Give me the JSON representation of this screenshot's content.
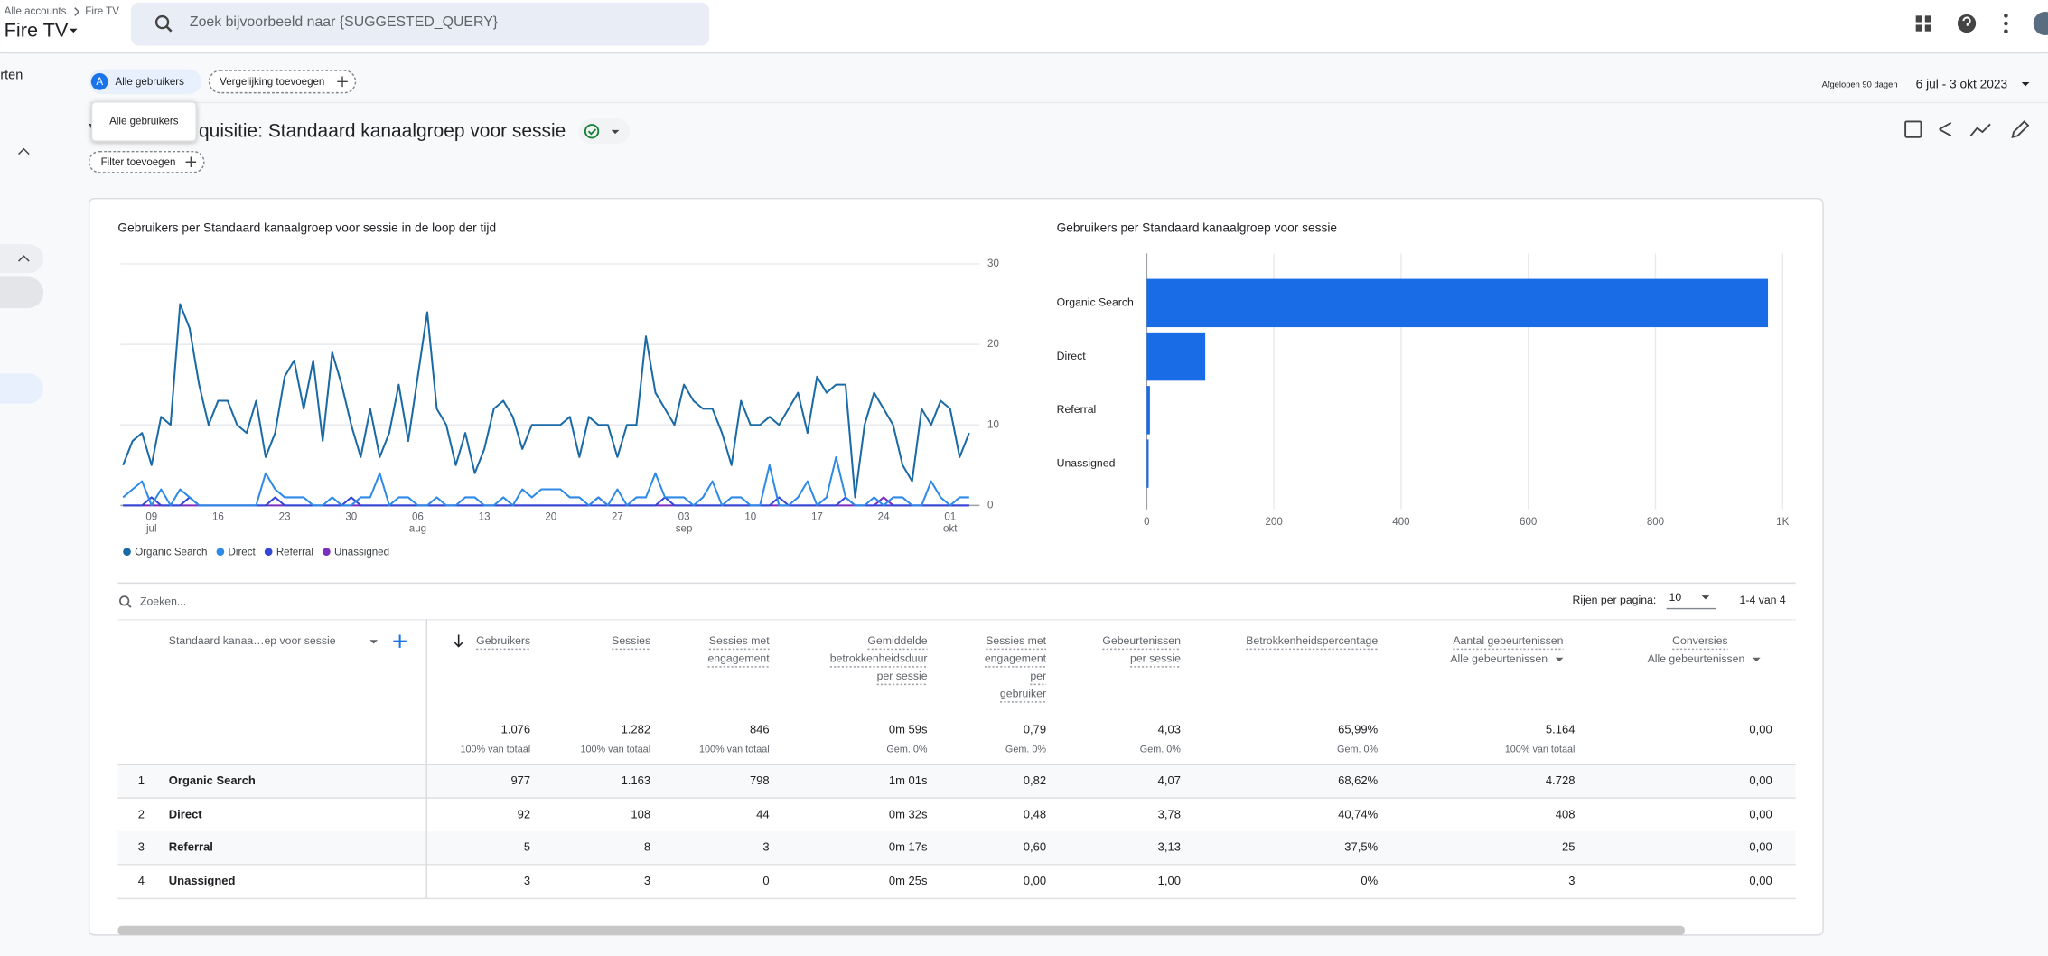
{
  "header": {
    "breadcrumb_root": "Alle accounts",
    "breadcrumb_property": "Fire TV",
    "property": "Fire TV",
    "search_placeholder": "Zoek bijvoorbeeld naar {SUGGESTED_QUERY}"
  },
  "sidebar": {
    "partial_label": "rten"
  },
  "toolbar": {
    "segment_badge": "A",
    "segment": "Alle gebruikers",
    "comparison": "Vergelijking toevoegen",
    "tooltip": "Alle gebruikers",
    "date_caption": "Afgelopen 90 dagen",
    "date_range": "6 jul - 3 okt 2023"
  },
  "report": {
    "title_start": "V",
    "title_end": "quisitie: Standaard kanaalgroep voor sessie",
    "filter": "Filter toevoegen"
  },
  "line_chart": {
    "type": "line",
    "title": "Gebruikers per Standaard kanaalgroep voor sessie in de loop der tijd",
    "categories": [
      null,
      null,
      null,
      "09",
      null,
      null,
      null,
      null,
      null,
      null,
      "16",
      null,
      null,
      null,
      null,
      null,
      null,
      "23",
      null,
      null,
      null,
      null,
      null,
      null,
      "30",
      null,
      null,
      null,
      null,
      null,
      null,
      "06",
      null,
      null,
      null,
      null,
      null,
      null,
      "13",
      null,
      null,
      null,
      null,
      null,
      null,
      "20",
      null,
      null,
      null,
      null,
      null,
      null,
      "27",
      null,
      null,
      null,
      null,
      null,
      null,
      "03",
      null,
      null,
      null,
      null,
      null,
      null,
      "10",
      null,
      null,
      null,
      null,
      null,
      null,
      "17",
      null,
      null,
      null,
      null,
      null,
      null,
      "24",
      null,
      null,
      null,
      null,
      null,
      null,
      "01",
      null,
      null
    ],
    "months": [
      null,
      null,
      null,
      "jul",
      null,
      null,
      null,
      null,
      null,
      null,
      null,
      null,
      null,
      null,
      null,
      null,
      null,
      null,
      null,
      null,
      null,
      null,
      null,
      null,
      null,
      null,
      null,
      null,
      null,
      null,
      null,
      "aug",
      null,
      null,
      null,
      null,
      null,
      null,
      null,
      null,
      null,
      null,
      null,
      null,
      null,
      null,
      null,
      null,
      null,
      null,
      null,
      null,
      null,
      null,
      null,
      null,
      null,
      null,
      null,
      "sep",
      null,
      null,
      null,
      null,
      null,
      null,
      null,
      null,
      null,
      null,
      null,
      null,
      null,
      null,
      null,
      null,
      null,
      null,
      null,
      null,
      null,
      null,
      null,
      null,
      null,
      null,
      null,
      "okt",
      null,
      null
    ],
    "ylim": [
      0,
      30
    ],
    "yticks": [
      0,
      10,
      20,
      30
    ],
    "grid": true,
    "series": [
      {
        "name": "Organic Search",
        "color": "#1a6aa6",
        "values": [
          5,
          8,
          9,
          5,
          11,
          10,
          25,
          22,
          15,
          10,
          13,
          13,
          10,
          9,
          13,
          6,
          9,
          16,
          18,
          12,
          18,
          8,
          19,
          15,
          10,
          6,
          12,
          6,
          9,
          15,
          8,
          16,
          24,
          12,
          10,
          5,
          9,
          4,
          7,
          12,
          13,
          11,
          7,
          10,
          10,
          10,
          10,
          11,
          6,
          11,
          10,
          10,
          6,
          10,
          10,
          21,
          14,
          12,
          10,
          15,
          13,
          12,
          12,
          9,
          5,
          13,
          10,
          10,
          11,
          10,
          12,
          14,
          9,
          16,
          14,
          15,
          15,
          1,
          10,
          14,
          12,
          10,
          5,
          3,
          12,
          10,
          13,
          12,
          6,
          9
        ]
      },
      {
        "name": "Direct",
        "color": "#2e8ae6",
        "values": [
          1,
          2,
          3,
          0,
          2,
          0,
          2,
          1,
          0,
          0,
          0,
          0,
          0,
          0,
          0,
          4,
          2,
          1,
          1,
          1,
          0,
          0,
          1,
          0,
          0,
          1,
          1,
          4,
          0,
          1,
          1,
          0,
          0,
          1,
          0,
          0,
          1,
          1,
          0,
          0,
          1,
          0,
          2,
          1,
          2,
          2,
          2,
          1,
          1,
          0,
          1,
          0,
          2,
          0,
          1,
          1,
          4,
          1,
          1,
          1,
          0,
          1,
          3,
          0,
          1,
          1,
          0,
          0,
          5,
          0,
          0,
          1,
          3,
          0,
          1,
          6,
          1,
          0,
          0,
          1,
          0,
          1,
          1,
          0,
          0,
          3,
          1,
          0,
          1,
          1
        ]
      },
      {
        "name": "Referral",
        "color": "#3348d6",
        "values": [
          0,
          0,
          0,
          1,
          0,
          0,
          0,
          1,
          0,
          0,
          0,
          0,
          0,
          0,
          0,
          0,
          1,
          0,
          0,
          0,
          0,
          0,
          0,
          0,
          1,
          0,
          0,
          0,
          0,
          0,
          0,
          0,
          0,
          0,
          0,
          0,
          0,
          0,
          0,
          0,
          0,
          0,
          0,
          0,
          0,
          0,
          0,
          0,
          0,
          0,
          0,
          0,
          0,
          0,
          0,
          0,
          0,
          1,
          0,
          0,
          0,
          0,
          0,
          0,
          0,
          0,
          0,
          0,
          0,
          1,
          0,
          0,
          0,
          0,
          0,
          0,
          1,
          0,
          0,
          0,
          0,
          0,
          0,
          0,
          0,
          0,
          0,
          0,
          0,
          0
        ]
      },
      {
        "name": "Unassigned",
        "color": "#7b2fbf",
        "values": [
          0,
          0,
          0,
          0,
          0,
          0,
          0,
          0,
          0,
          0,
          0,
          0,
          0,
          0,
          0,
          0,
          0,
          0,
          0,
          0,
          0,
          0,
          0,
          0,
          0,
          0,
          0,
          0,
          0,
          0,
          0,
          0,
          0,
          0,
          0,
          0,
          0,
          0,
          0,
          0,
          0,
          0,
          0,
          0,
          0,
          0,
          0,
          0,
          0,
          0,
          1,
          0,
          0,
          0,
          0,
          0,
          0,
          0,
          0,
          0,
          0,
          0,
          0,
          0,
          0,
          0,
          0,
          0,
          0,
          0,
          0,
          0,
          0,
          0,
          0,
          0,
          0,
          0,
          0,
          0,
          1,
          0,
          0,
          0,
          0,
          0,
          0,
          0,
          0,
          0
        ]
      }
    ]
  },
  "bar_chart": {
    "type": "bar",
    "title": "Gebruikers per Standaard kanaalgroep voor sessie",
    "orientation": "horizontal",
    "categories": [
      "Organic Search",
      "Direct",
      "Referral",
      "Unassigned"
    ],
    "values": [
      977,
      92,
      5,
      3
    ],
    "color": "#1a6be6",
    "xlim": [
      0,
      1000
    ],
    "xticks": [
      0,
      200,
      400,
      600,
      800,
      {
        "value": 1000,
        "label": "1K"
      }
    ],
    "grid": true
  },
  "table": {
    "search_placeholder": "Zoeken...",
    "rows_per_page_label": "Rijen per pagina:",
    "rows_per_page": "10",
    "pagination": "1-4 van 4",
    "dimension_header": "Standaard kanaa…ep voor sessie",
    "columns": [
      {
        "lines": [
          "Gebruikers"
        ]
      },
      {
        "lines": [
          "Sessies"
        ]
      },
      {
        "lines": [
          "Sessies met",
          "engagement"
        ]
      },
      {
        "lines": [
          "Gemiddelde",
          "betrokkenheidsduur",
          "per sessie"
        ]
      },
      {
        "lines": [
          "Sessies met",
          "engagement",
          "per",
          "gebruiker"
        ]
      },
      {
        "lines": [
          "Gebeurtenissen",
          "per sessie"
        ]
      },
      {
        "lines": [
          "Betrokkenheidspercentage"
        ]
      },
      {
        "lines": [
          "Aantal gebeurtenissen"
        ],
        "filter": "Alle gebeurtenissen"
      },
      {
        "lines": [
          "Conversies"
        ],
        "filter": "Alle gebeurtenissen"
      }
    ],
    "totals": [
      "1.076",
      "1.282",
      "846",
      "0m 59s",
      "0,79",
      "4,03",
      "65,99%",
      "5.164",
      "0,00"
    ],
    "totals_notes": [
      "100% van totaal",
      "100% van totaal",
      "100% van totaal",
      "Gem. 0%",
      "Gem. 0%",
      "Gem. 0%",
      "Gem. 0%",
      "100% van totaal",
      null
    ],
    "rows": [
      {
        "rank": 1,
        "name": "Organic Search",
        "cells": [
          "977",
          "1.163",
          "798",
          "1m 01s",
          "0,82",
          "4,07",
          "68,62%",
          "4.728",
          "0,00"
        ]
      },
      {
        "rank": 2,
        "name": "Direct",
        "cells": [
          "92",
          "108",
          "44",
          "0m 32s",
          "0,48",
          "3,78",
          "40,74%",
          "408",
          "0,00"
        ]
      },
      {
        "rank": 3,
        "name": "Referral",
        "cells": [
          "5",
          "8",
          "3",
          "0m 17s",
          "0,60",
          "3,13",
          "37,5%",
          "25",
          "0,00"
        ]
      },
      {
        "rank": 4,
        "name": "Unassigned",
        "cells": [
          "3",
          "3",
          "0",
          "0m 25s",
          "0,00",
          "1,00",
          "0%",
          "3",
          "0,00"
        ]
      }
    ]
  }
}
